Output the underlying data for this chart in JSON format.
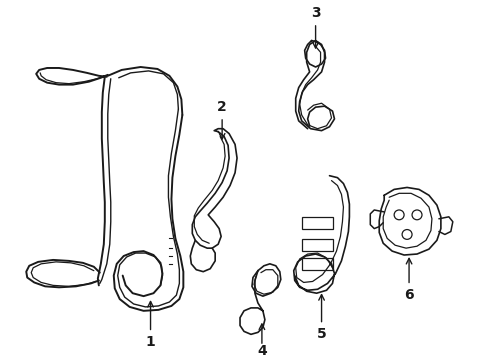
{
  "background_color": "#ffffff",
  "line_color": "#1a1a1a",
  "figsize": [
    4.9,
    3.6
  ],
  "dpi": 100,
  "label_fontsize": 10,
  "label_fontweight": "bold",
  "parts": {
    "part1_label": "1",
    "part2_label": "2",
    "part3_label": "3",
    "part4_label": "4",
    "part5_label": "5",
    "part6_label": "6"
  }
}
